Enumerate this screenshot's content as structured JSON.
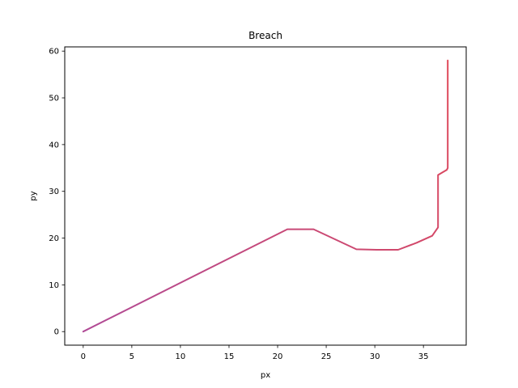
{
  "chart_data": {
    "type": "line",
    "title": "Breach",
    "xlabel": "px",
    "ylabel": "py",
    "xlim": [
      -1.9,
      39.4
    ],
    "ylim": [
      -2.9,
      60.9
    ],
    "x_ticks": [
      0,
      5,
      10,
      15,
      20,
      25,
      30,
      35
    ],
    "y_ticks": [
      0,
      10,
      20,
      30,
      40,
      50,
      60
    ],
    "grid": false,
    "legend": "none",
    "series": [
      {
        "color_start": "#b04a96",
        "color_end": "#e04858",
        "x": [
          0.0,
          21.0,
          23.7,
          28.1,
          30.2,
          32.4,
          34.3,
          35.9,
          36.5,
          36.5,
          37.4,
          37.5,
          37.5
        ],
        "y": [
          0.0,
          21.9,
          21.9,
          17.6,
          17.5,
          17.5,
          19.0,
          20.5,
          22.3,
          33.5,
          34.6,
          35.0,
          58.0
        ]
      }
    ]
  }
}
